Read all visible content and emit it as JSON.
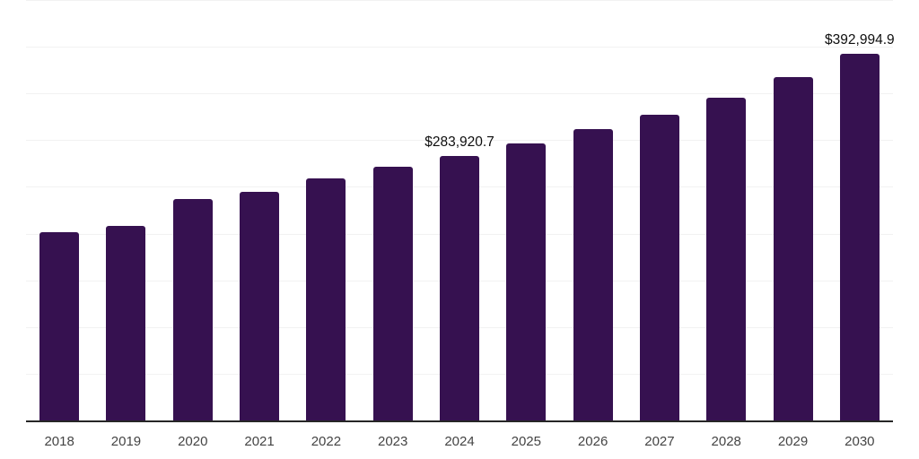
{
  "chart_data": {
    "type": "bar",
    "title": "",
    "xlabel": "",
    "ylabel": "",
    "categories": [
      "2018",
      "2019",
      "2020",
      "2021",
      "2022",
      "2023",
      "2024",
      "2025",
      "2026",
      "2027",
      "2028",
      "2029",
      "2030"
    ],
    "values": [
      202800,
      209500,
      237600,
      245300,
      260400,
      272400,
      283920.7,
      297100,
      312500,
      328100,
      346800,
      368800,
      392994.9
    ],
    "ylim": [
      0,
      451000
    ],
    "gridline_interval": 50000,
    "grid": true,
    "legend": false,
    "annotations": [
      {
        "category": "2024",
        "text": "$283,920.7"
      },
      {
        "category": "2030",
        "text": "$392,994.9"
      }
    ],
    "colors": {
      "bar": "#361150",
      "gridline": "#f2f2f2",
      "axis_line": "#262626",
      "tick_label": "#444444",
      "value_label": "#0e0e0e",
      "background": "#ffffff"
    }
  }
}
